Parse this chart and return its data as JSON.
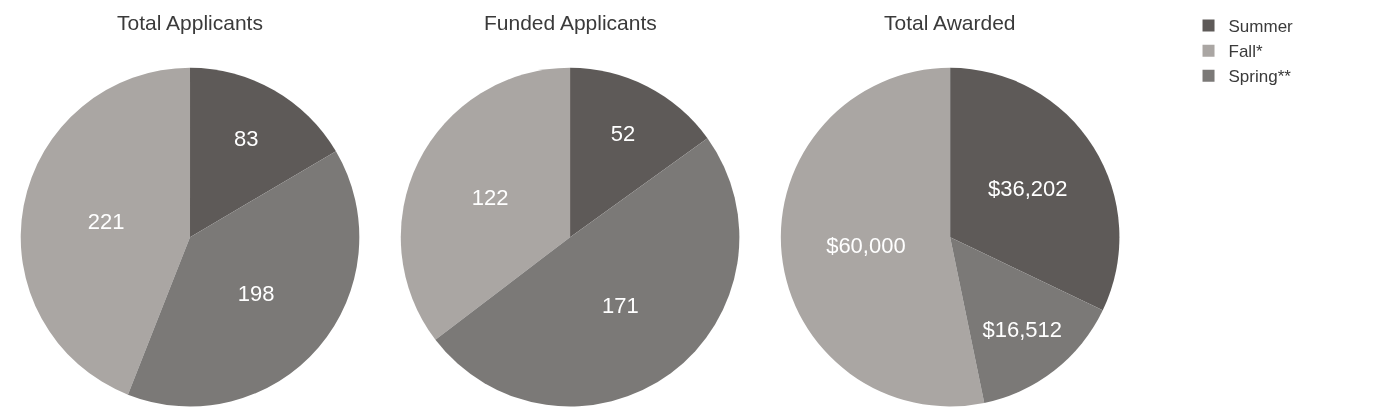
{
  "chart_data": [
    {
      "type": "pie",
      "title": "Total Applicants",
      "categories": [
        "Summer",
        "Fall*",
        "Spring**"
      ],
      "values": [
        83,
        221,
        198
      ],
      "colors": [
        "#5e5a58",
        "#aaa6a3",
        "#7b7977"
      ],
      "data_labels": true,
      "legend": "top right"
    },
    {
      "type": "pie",
      "title": "Funded Applicants",
      "categories": [
        null,
        null,
        null
      ],
      "values": [
        52,
        122,
        171
      ],
      "colors": [
        "#5e5a58",
        "#aaa6a3",
        "#7b7977"
      ],
      "data_labels": true
    },
    {
      "type": "pie",
      "title": "Total Awarded",
      "categories": [
        null,
        null,
        null
      ],
      "values": [
        36202,
        60000,
        16512
      ],
      "colors": [
        "#5e5a58",
        "#aaa6a3",
        "#7b7977"
      ],
      "value_labels": [
        "$36,202",
        "$60,000",
        "$16,512"
      ]
    }
  ]
}
